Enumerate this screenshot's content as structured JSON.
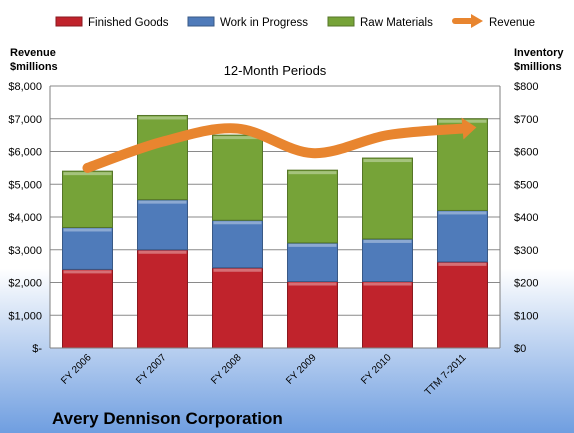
{
  "chart_data": {
    "type": "bar",
    "stacked": true,
    "title": "12-Month Periods",
    "company": "Avery Dennison Corporation",
    "left_axis_label": [
      "Revenue",
      "$millions"
    ],
    "right_axis_label": [
      "Inventory",
      "$millions"
    ],
    "categories": [
      "FY 2006",
      "FY 2007",
      "FY 2008",
      "FY 2009",
      "FY 2010",
      "TTM 7-2011"
    ],
    "left_ticks": [
      "$-",
      "$1,000",
      "$2,000",
      "$3,000",
      "$4,000",
      "$5,000",
      "$6,000",
      "$7,000",
      "$8,000"
    ],
    "right_ticks": [
      "$0",
      "$100",
      "$200",
      "$300",
      "$400",
      "$500",
      "$600",
      "$700",
      "$800"
    ],
    "left_ylim": [
      0,
      8000
    ],
    "right_ylim": [
      0,
      800
    ],
    "grid": true,
    "legend_position": "top",
    "series": [
      {
        "name": "Finished Goods",
        "color": "#c0232c",
        "values": [
          240,
          300,
          245,
          203,
          203,
          263
        ]
      },
      {
        "name": "Work in Progress",
        "color": "#4f7bba",
        "values": [
          128,
          153,
          145,
          118,
          130,
          157
        ]
      },
      {
        "name": "Raw Materials",
        "color": "#76a338",
        "values": [
          172,
          257,
          260,
          222,
          247,
          280
        ]
      }
    ],
    "line_series": {
      "name": "Revenue",
      "color": "#e8852f",
      "values": [
        5500,
        6300,
        6700,
        5950,
        6500,
        6700
      ]
    }
  }
}
